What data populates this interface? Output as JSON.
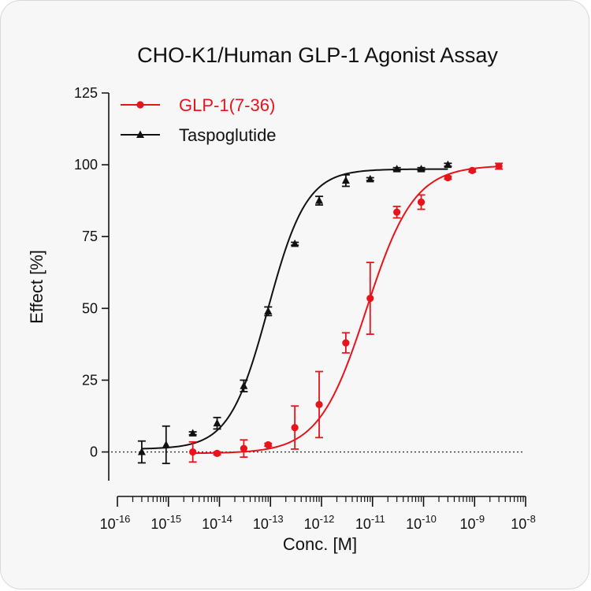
{
  "chart_data": {
    "type": "scatter",
    "title": "CHO-K1/Human GLP-1 Agonist Assay",
    "xlabel": "Conc. [M]",
    "ylabel": "Effect  [%]",
    "x_scale": "log",
    "xlim": [
      1e-16,
      1e-08
    ],
    "ylim": [
      -10,
      125
    ],
    "yticks": [
      0,
      25,
      50,
      75,
      100,
      125
    ],
    "xtick_labels": [
      {
        "base": "10",
        "exp": "-16"
      },
      {
        "base": "10",
        "exp": "-15"
      },
      {
        "base": "10",
        "exp": "-14"
      },
      {
        "base": "10",
        "exp": "-13"
      },
      {
        "base": "10",
        "exp": "-12"
      },
      {
        "base": "10",
        "exp": "-11"
      },
      {
        "base": "10",
        "exp": "-10"
      },
      {
        "base": "10",
        "exp": "-9"
      },
      {
        "base": "10",
        "exp": "-8"
      }
    ],
    "reference_line_y": 0,
    "legend_position": "top-left",
    "grid": false,
    "series": [
      {
        "name": "GLP-1(7-36)",
        "color": "#e8141b",
        "marker": "circle",
        "points": [
          {
            "x": 3e-15,
            "y": 0.0,
            "err": 3.5
          },
          {
            "x": 9e-15,
            "y": -0.5,
            "err": 0.5
          },
          {
            "x": 3e-14,
            "y": 1.2,
            "err": 3.0
          },
          {
            "x": 9e-14,
            "y": 2.5,
            "err": 0.5
          },
          {
            "x": 3e-13,
            "y": 8.5,
            "err": 7.5
          },
          {
            "x": 9e-13,
            "y": 16.5,
            "err": 11.5
          },
          {
            "x": 3e-12,
            "y": 38.0,
            "err": 3.5
          },
          {
            "x": 9e-12,
            "y": 53.5,
            "err": 12.5
          },
          {
            "x": 3e-11,
            "y": 83.5,
            "err": 2.0
          },
          {
            "x": 9e-11,
            "y": 87.0,
            "err": 2.5
          },
          {
            "x": 3e-10,
            "y": 95.5,
            "err": 0.5
          },
          {
            "x": 9e-10,
            "y": 98.0,
            "err": 0.5
          },
          {
            "x": 3e-09,
            "y": 99.5,
            "err": 1.0
          }
        ],
        "fit": {
          "bottom": -0.5,
          "top": 99.8,
          "logEC50": -11.12,
          "hill": 0.93
        }
      },
      {
        "name": "Taspoglutide",
        "color": "#111111",
        "marker": "triangle",
        "points": [
          {
            "x": 3e-16,
            "y": 0.0,
            "err": 3.8
          },
          {
            "x": 9e-16,
            "y": 2.5,
            "err": 6.5
          },
          {
            "x": 3e-15,
            "y": 6.5,
            "err": 0.5
          },
          {
            "x": 9e-15,
            "y": 10.0,
            "err": 2.0
          },
          {
            "x": 3e-14,
            "y": 23.0,
            "err": 2.0
          },
          {
            "x": 9e-14,
            "y": 49.0,
            "err": 1.5
          },
          {
            "x": 3e-13,
            "y": 72.5,
            "err": 0.5
          },
          {
            "x": 9e-13,
            "y": 87.5,
            "err": 1.5
          },
          {
            "x": 3e-12,
            "y": 94.5,
            "err": 2.0
          },
          {
            "x": 9e-12,
            "y": 95.0,
            "err": 0.5
          },
          {
            "x": 3e-11,
            "y": 98.5,
            "err": 0.5
          },
          {
            "x": 9e-11,
            "y": 98.5,
            "err": 0.5
          },
          {
            "x": 3e-10,
            "y": 100.0,
            "err": 0.5
          }
        ],
        "fit": {
          "bottom": 1.0,
          "top": 98.5,
          "logEC50": -13.05,
          "hill": 1.15
        }
      }
    ]
  }
}
